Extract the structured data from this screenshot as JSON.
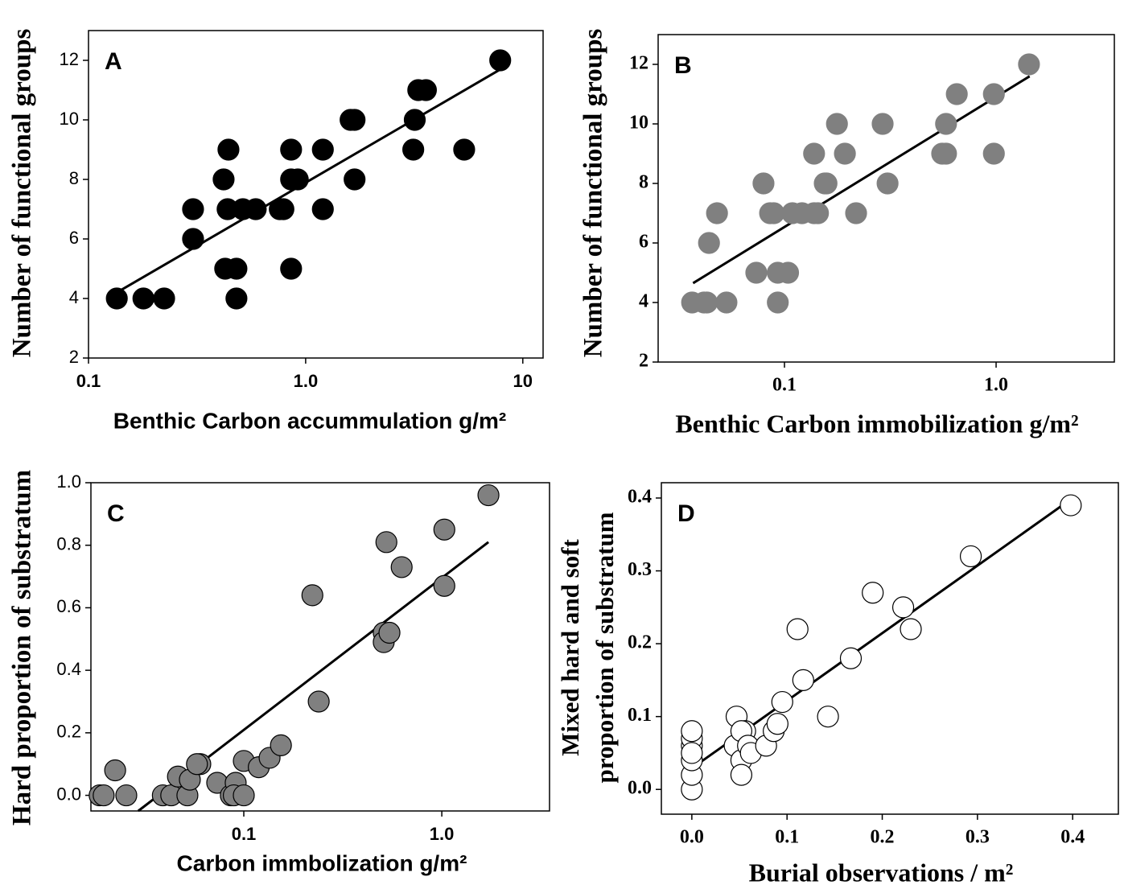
{
  "chart_data": [
    {
      "type": "scatter",
      "annotation": "A",
      "xlabel": "Benthic Carbon accummulation g/m²",
      "ylabel": [
        "Number of functional groups"
      ],
      "xlog": true,
      "xlim": [
        0.1,
        12.4
      ],
      "ylim": [
        2,
        13
      ],
      "xticks": [
        0.1,
        {
          "value": 1,
          "label": "1.0"
        },
        10
      ],
      "yticks": [
        2,
        4,
        6,
        8,
        10,
        12
      ],
      "color": "#000000",
      "edgecolor": "#000000",
      "x": [
        0.135,
        0.179,
        0.223,
        0.303,
        0.303,
        0.419,
        0.441,
        0.426,
        0.437,
        0.48,
        0.48,
        0.514,
        0.589,
        0.76,
        0.79,
        0.857,
        0.857,
        0.857,
        0.92,
        1.2,
        1.2,
        1.61,
        1.68,
        1.68,
        3.13,
        3.18,
        3.3,
        3.58,
        5.37,
        7.87
      ],
      "y": [
        4,
        4,
        4,
        7,
        6,
        8,
        9,
        5,
        7,
        5,
        4,
        7,
        7,
        7,
        7,
        5,
        9,
        8,
        8,
        9,
        7,
        10,
        10,
        8,
        9,
        10,
        11,
        11,
        9,
        12
      ],
      "trendline": {
        "x": [
          0.135,
          7.9
        ],
        "y": [
          4.2,
          11.7
        ]
      }
    },
    {
      "type": "scatter",
      "annotation": "B",
      "xlabel": "Benthic Carbon immobilization g/m²",
      "ylabel": [
        "Number of functional groups"
      ],
      "xlog": true,
      "xlim": [
        0.0253,
        3.62
      ],
      "ylim": [
        2,
        13
      ],
      "xticks": [
        0.1,
        {
          "value": 1,
          "label": "1.0"
        }
      ],
      "yticks": [
        2,
        4,
        6,
        8,
        10,
        12
      ],
      "color": "#808080",
      "edgecolor": "#808080",
      "x": [
        0.0366,
        0.0417,
        0.043,
        0.0532,
        0.044,
        0.048,
        0.0796,
        0.0736,
        0.0855,
        0.089,
        0.093,
        0.093,
        0.104,
        0.109,
        0.121,
        0.138,
        0.144,
        0.138,
        0.155,
        0.158,
        0.177,
        0.193,
        0.218,
        0.291,
        0.307,
        0.556,
        0.58,
        0.58,
        0.652,
        0.976,
        0.976,
        1.43
      ],
      "y": [
        4,
        4,
        4,
        4,
        6,
        7,
        8,
        5,
        7,
        7,
        4,
        5,
        5,
        7,
        7,
        7,
        7,
        9,
        8,
        8,
        10,
        9,
        7,
        10,
        8,
        9,
        9,
        10,
        11,
        11,
        9,
        12
      ],
      "trendline": {
        "x": [
          0.037,
          1.44
        ],
        "y": [
          4.65,
          11.6
        ]
      }
    },
    {
      "type": "scatter",
      "annotation": "C",
      "xlabel": "Carbon immbolization g/m²",
      "ylabel": [
        "Hard proportion of substratum"
      ],
      "xlog": true,
      "xlim": [
        0.0169,
        3.5
      ],
      "ylim": [
        -0.05,
        1.0
      ],
      "xticks": [
        0.1,
        {
          "value": 1,
          "label": "1.0"
        }
      ],
      "yticks": [
        {
          "value": 0,
          "label": "0.0"
        },
        0.2,
        0.4,
        0.6,
        0.8,
        {
          "value": 1,
          "label": "1.0"
        }
      ],
      "color": "#808080",
      "edgecolor": "#000000",
      "x": [
        0.0187,
        0.0196,
        0.0224,
        0.0255,
        0.039,
        0.043,
        0.0465,
        0.0519,
        0.0534,
        0.0603,
        0.058,
        0.0734,
        0.086,
        0.091,
        0.089,
        0.1,
        0.1,
        0.119,
        0.135,
        0.154,
        0.222,
        0.239,
        0.509,
        0.509,
        0.544,
        0.525,
        0.627,
        1.03,
        1.03,
        1.72
      ],
      "y": [
        0,
        0,
        0.08,
        0,
        0,
        0,
        0.06,
        0,
        0.05,
        0.1,
        0.1,
        0.04,
        0,
        0.04,
        0,
        0,
        0.11,
        0.09,
        0.12,
        0.16,
        0.64,
        0.3,
        0.52,
        0.49,
        0.52,
        0.81,
        0.73,
        0.85,
        0.67,
        0.96
      ],
      "trendline": {
        "x": [
          0.0293,
          1.72
        ],
        "y": [
          -0.05,
          0.81
        ]
      }
    },
    {
      "type": "scatter",
      "annotation": "D",
      "xlabel": "Burial observations / m²",
      "ylabel": [
        "Mixed hard and soft",
        "proportion of substratum"
      ],
      "xlog": false,
      "xlim": [
        -0.032,
        0.448
      ],
      "ylim": [
        -0.034,
        0.421
      ],
      "xticks": [
        {
          "value": 0,
          "label": "0.0"
        },
        0.1,
        0.2,
        0.3,
        0.4
      ],
      "yticks": [
        {
          "value": 0,
          "label": "0.0"
        },
        0.1,
        0.2,
        0.3,
        0.4
      ],
      "color": "#ffffff",
      "edgecolor": "#000000",
      "x": [
        0,
        0,
        0,
        0,
        0,
        0,
        0,
        0.047,
        0.045,
        0.052,
        0.052,
        0.056,
        0.052,
        0.059,
        0.062,
        0.078,
        0.086,
        0.09,
        0.095,
        0.111,
        0.117,
        0.143,
        0.167,
        0.19,
        0.222,
        0.23,
        0.293,
        0.398
      ],
      "y": [
        0,
        0.02,
        0.04,
        0.06,
        0.07,
        0.08,
        0.05,
        0.1,
        0.06,
        0.04,
        0.02,
        0.08,
        0.08,
        0.06,
        0.05,
        0.06,
        0.08,
        0.09,
        0.12,
        0.22,
        0.15,
        0.1,
        0.18,
        0.27,
        0.25,
        0.22,
        0.32,
        0.39
      ],
      "trendline": {
        "x": [
          0,
          0.4
        ],
        "y": [
          0.029,
          0.4
        ]
      }
    }
  ]
}
